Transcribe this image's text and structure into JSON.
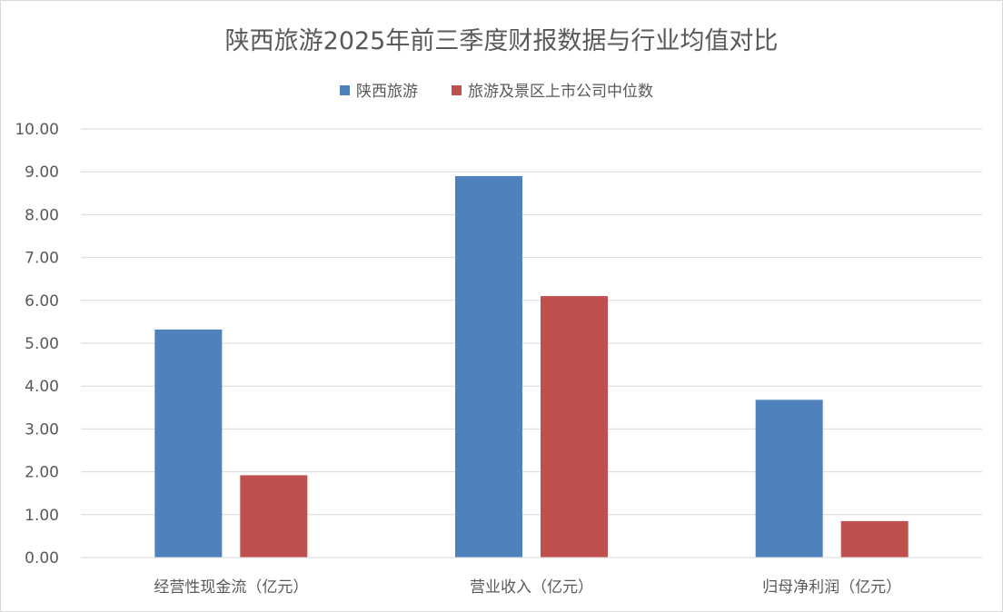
{
  "chart_data": {
    "type": "bar",
    "title": "陕西旅游2025年前三季度财报数据与行业均值对比",
    "categories": [
      "经营性现金流（亿元）",
      "营业收入（亿元）",
      "归母净利润（亿元）"
    ],
    "series": [
      {
        "name": "陕西旅游",
        "values": [
          5.32,
          8.9,
          3.68
        ],
        "color": "#4f81bd"
      },
      {
        "name": "旅游及景区上市公司中位数",
        "values": [
          1.92,
          6.1,
          0.85
        ],
        "color": "#c0504d"
      }
    ],
    "ylim": [
      0,
      10
    ],
    "yticks": [
      "0.00",
      "1.00",
      "2.00",
      "3.00",
      "4.00",
      "5.00",
      "6.00",
      "7.00",
      "8.00",
      "9.00",
      "10.00"
    ],
    "legend_position": "top-center",
    "grid": true
  }
}
